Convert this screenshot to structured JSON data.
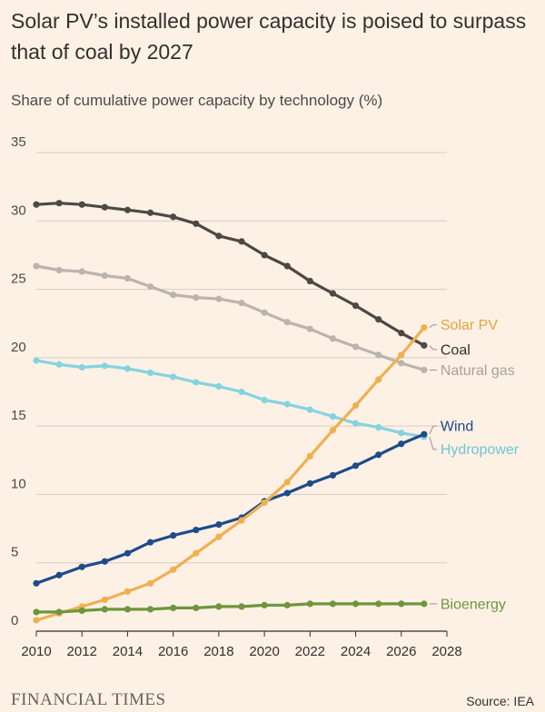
{
  "header": {
    "title": "Solar PV’s installed power capacity is poised to surpass that of coal by 2027",
    "subtitle": "Share of cumulative power capacity by technology (%)"
  },
  "footer": {
    "logo": "FINANCIAL TIMES",
    "source": "Source: IEA"
  },
  "chart_data": {
    "type": "line",
    "xlim": [
      2010,
      2028
    ],
    "ylim": [
      0,
      35
    ],
    "x_ticks": [
      "2010",
      "2012",
      "2014",
      "2016",
      "2018",
      "2020",
      "2022",
      "2024",
      "2026",
      "2028"
    ],
    "y_ticks": [
      "0",
      "5",
      "10",
      "15",
      "20",
      "25",
      "30",
      "35"
    ],
    "grid": "horizontal",
    "legend": "direct labels at line ends",
    "x": [
      2010,
      2011,
      2012,
      2013,
      2014,
      2015,
      2016,
      2017,
      2018,
      2019,
      2020,
      2021,
      2022,
      2023,
      2024,
      2025,
      2026,
      2027
    ],
    "series": [
      {
        "name": "Coal",
        "color": "#4d4845",
        "label_color": "#33302e",
        "values": [
          31.2,
          31.3,
          31.2,
          31.0,
          30.8,
          30.6,
          30.3,
          29.8,
          28.9,
          28.5,
          27.5,
          26.7,
          25.6,
          24.7,
          23.8,
          22.8,
          21.8,
          20.9
        ]
      },
      {
        "name": "Natural gas",
        "color": "#bbb4ae",
        "label_color": "#a8a19b",
        "values": [
          26.7,
          26.4,
          26.3,
          26.0,
          25.8,
          25.2,
          24.6,
          24.4,
          24.3,
          24.0,
          23.3,
          22.6,
          22.1,
          21.4,
          20.8,
          20.2,
          19.6,
          19.1
        ]
      },
      {
        "name": "Hydropower",
        "color": "#86d3e0",
        "label_color": "#6fc4d6",
        "values": [
          19.8,
          19.5,
          19.3,
          19.4,
          19.2,
          18.9,
          18.6,
          18.2,
          17.9,
          17.5,
          16.9,
          16.6,
          16.2,
          15.7,
          15.2,
          14.9,
          14.5,
          14.2
        ]
      },
      {
        "name": "Wind",
        "color": "#1e4b8a",
        "label_color": "#1e4b8a",
        "values": [
          3.5,
          4.1,
          4.7,
          5.1,
          5.7,
          6.5,
          7.0,
          7.4,
          7.8,
          8.3,
          9.5,
          10.1,
          10.8,
          11.4,
          12.1,
          12.9,
          13.7,
          14.4
        ]
      },
      {
        "name": "Solar PV",
        "color": "#f0b050",
        "label_color": "#e8a33c",
        "values": [
          0.8,
          1.3,
          1.8,
          2.3,
          2.9,
          3.5,
          4.5,
          5.7,
          6.9,
          8.1,
          9.4,
          10.9,
          12.8,
          14.7,
          16.5,
          18.4,
          20.2,
          22.2
        ]
      },
      {
        "name": "Bioenergy",
        "color": "#6e963c",
        "label_color": "#6e963c",
        "values": [
          1.4,
          1.4,
          1.5,
          1.6,
          1.6,
          1.6,
          1.7,
          1.7,
          1.8,
          1.8,
          1.9,
          1.9,
          2.0,
          2.0,
          2.0,
          2.0,
          2.0,
          2.0
        ]
      }
    ],
    "end_labels": [
      {
        "series": "Solar PV",
        "y": 22.4
      },
      {
        "series": "Coal",
        "y": 20.6
      },
      {
        "series": "Natural gas",
        "y": 19.1
      },
      {
        "series": "Wind",
        "y": 15.0
      },
      {
        "series": "Hydropower",
        "y": 13.3
      },
      {
        "series": "Bioenergy",
        "y": 2.0
      }
    ]
  }
}
